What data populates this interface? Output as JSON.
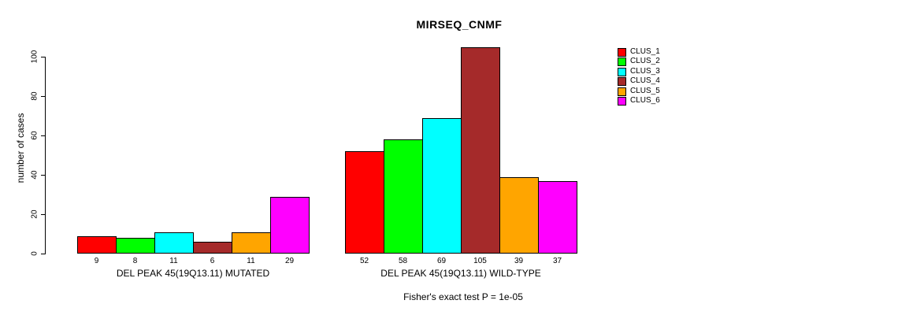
{
  "chart_data": {
    "type": "bar",
    "title": "MIRSEQ_CNMF",
    "ylabel": "number of cases",
    "ylim": [
      0,
      110
    ],
    "yticks": [
      0,
      20,
      40,
      60,
      80,
      100
    ],
    "grid": false,
    "legend_position": "right",
    "clusters": [
      {
        "name": "CLUS_1",
        "color": "#ff0000"
      },
      {
        "name": "CLUS_2",
        "color": "#00ff00"
      },
      {
        "name": "CLUS_3",
        "color": "#00ffff"
      },
      {
        "name": "CLUS_4",
        "color": "#a52a2a"
      },
      {
        "name": "CLUS_5",
        "color": "#ffa500"
      },
      {
        "name": "CLUS_6",
        "color": "#ff00ff"
      }
    ],
    "groups": [
      {
        "label": "DEL PEAK 45(19Q13.11) MUTATED",
        "values": [
          9,
          8,
          11,
          6,
          11,
          29
        ]
      },
      {
        "label": "DEL PEAK 45(19Q13.11) WILD-TYPE",
        "values": [
          52,
          58,
          69,
          105,
          39,
          37
        ]
      }
    ],
    "footer": "Fisher's exact test P = 1e-05",
    "bar_border_color": "#000000",
    "background_color": "#ffffff"
  }
}
